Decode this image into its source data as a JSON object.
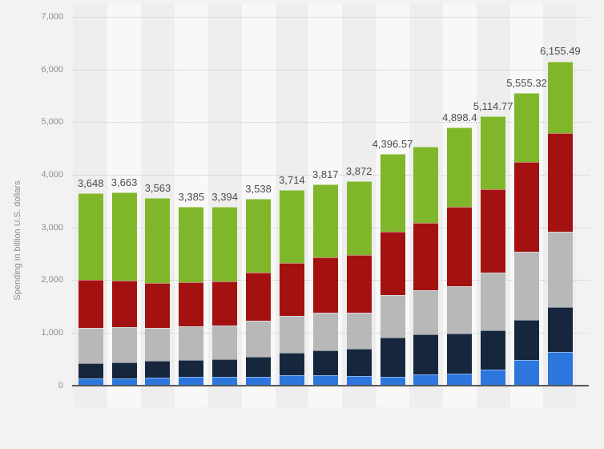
{
  "page": {
    "background": "#f2f2f2"
  },
  "y_axis": {
    "title": "Spending in billion U.S. dollars",
    "tick_labels": [
      "7,000",
      "6,000",
      "5,000",
      "4,000",
      "3,000",
      "2,000",
      "1,000",
      "0"
    ],
    "tick_values": [
      7000,
      6000,
      5000,
      4000,
      3000,
      2000,
      1000,
      0
    ]
  },
  "x_axis": {
    "tick_labels_visible": false
  },
  "chart_data": {
    "type": "bar",
    "stacked": true,
    "ylabel": "Spending in billion U.S. dollars",
    "ylim": [
      0,
      7000
    ],
    "grid": "horizontal-dotted",
    "legend": "none",
    "bar_count": 15,
    "total_labels": [
      "3,648",
      "3,663",
      "3,563",
      "3,385",
      "3,394",
      "3,538",
      "3,714",
      "3,817",
      "3,872",
      "4,396.57",
      "",
      "4,898.4",
      "5,114.77",
      "5,555.32",
      "6,155.49"
    ],
    "totals": [
      3648,
      3663,
      3563,
      3385,
      3394,
      3538,
      3714,
      3817,
      3872,
      4396.57,
      4540,
      4898.4,
      5114.77,
      5555.32,
      6155.49
    ],
    "series": [
      {
        "name": "segment-blue",
        "color": "#2d76dd",
        "values": [
          133,
          133,
          153,
          157,
          157,
          168,
          188,
          198,
          180,
          170,
          210,
          220,
          305,
          475,
          630
        ]
      },
      {
        "name": "segment-dark-navy",
        "color": "#16273d",
        "values": [
          284,
          305,
          320,
          327,
          342,
          382,
          433,
          474,
          520,
          735,
          767,
          760,
          738,
          772,
          856
        ]
      },
      {
        "name": "segment-gray",
        "color": "#b8b8b8",
        "values": [
          678,
          666,
          622,
          646,
          636,
          672,
          703,
          713,
          674,
          810,
          829,
          906,
          1095,
          1298,
          1434
        ]
      },
      {
        "name": "segment-dark-red",
        "color": "#a31210",
        "values": [
          905,
          881,
          849,
          829,
          840,
          916,
          1001,
          1047,
          1110,
          1212,
          1274,
          1509,
          1588,
          1705,
          1880
        ]
      },
      {
        "name": "segment-green",
        "color": "#80b62a",
        "values": [
          1648,
          1678,
          1619,
          1426,
          1419,
          1400,
          1389,
          1385,
          1388,
          1469.57,
          1460,
          1503.4,
          1388.77,
          1305.32,
          1355.49
        ]
      }
    ],
    "colors": {
      "band_odd": "#eeeeee",
      "band_even": "#f8f8f8",
      "gridline": "#c6c6c6",
      "axis_line": "#55585a",
      "tick_label": "#8d8d8d",
      "total_label": "#4c4c4c"
    }
  }
}
